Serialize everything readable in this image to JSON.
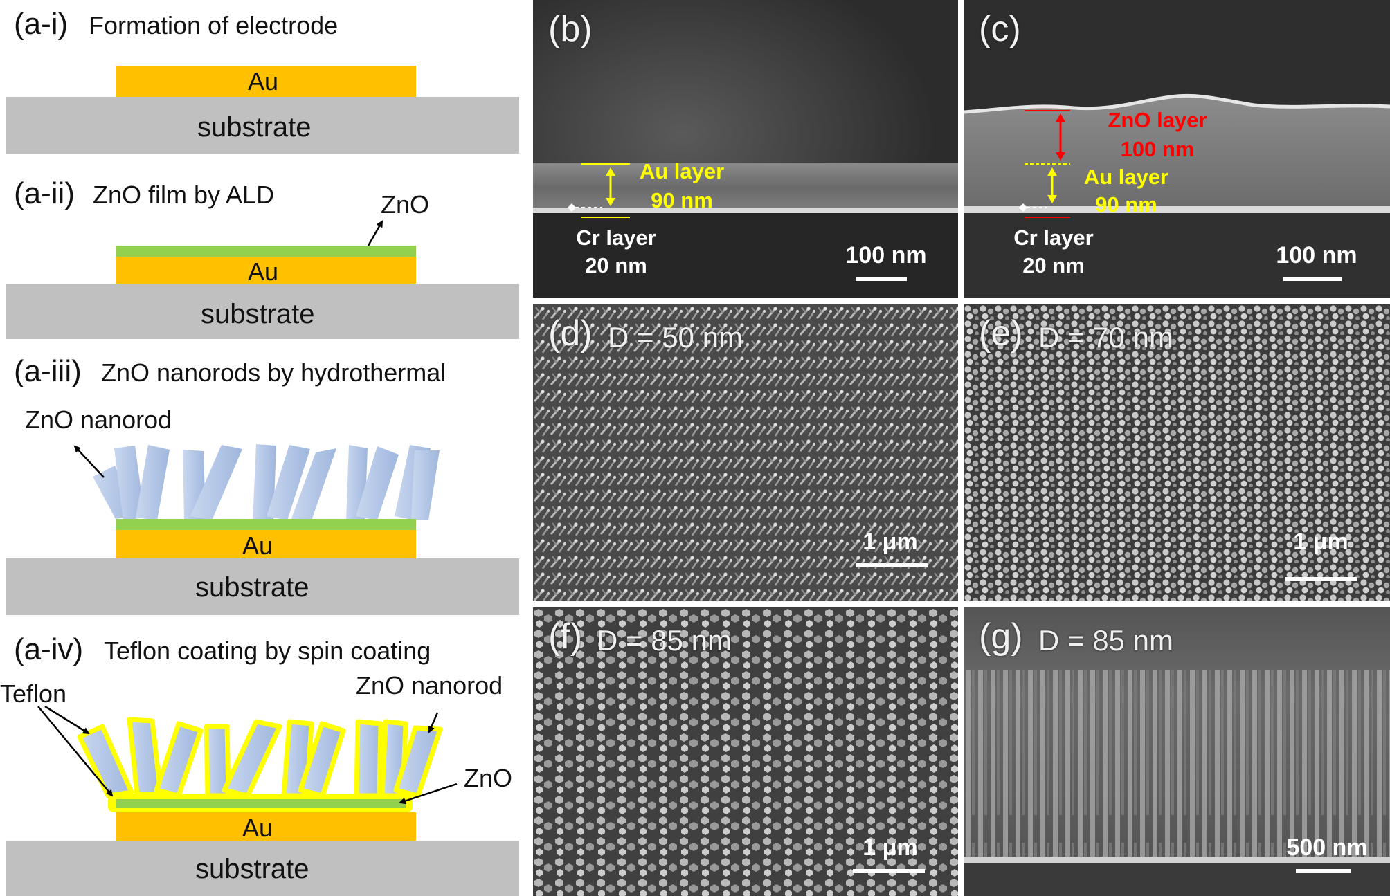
{
  "left_panels": {
    "a1": {
      "label": "(a-i)",
      "title": "Formation of electrode",
      "au": "Au",
      "substrate": "substrate"
    },
    "a2": {
      "label": "(a-ii)",
      "title": "ZnO film by ALD",
      "zno": "ZnO",
      "au": "Au",
      "substrate": "substrate"
    },
    "a3": {
      "label": "(a-iii)",
      "title": "ZnO nanorods by hydrothermal",
      "nanorod": "ZnO nanorod",
      "au": "Au",
      "substrate": "substrate"
    },
    "a4": {
      "label": "(a-iv)",
      "title": "Teflon coating by spin coating",
      "teflon": "Teflon",
      "nanorod": "ZnO nanorod",
      "zno": "ZnO",
      "au": "Au",
      "substrate": "substrate"
    }
  },
  "sem": {
    "b": {
      "label": "(b)",
      "au_layer": "Au layer",
      "au_thick": "90 nm",
      "cr_layer": "Cr layer",
      "cr_thick": "20 nm",
      "scale": "100 nm"
    },
    "c": {
      "label": "(c)",
      "zno_layer": "ZnO layer",
      "zno_thick": "100 nm",
      "au_layer": "Au layer",
      "au_thick": "90 nm",
      "cr_layer": "Cr layer",
      "cr_thick": "20 nm",
      "scale": "100 nm"
    },
    "d": {
      "label": "(d)",
      "diameter": "D = 50 nm",
      "scale": "1 μm"
    },
    "e": {
      "label": "(e)",
      "diameter": "D = 70 nm",
      "scale": "1 μm"
    },
    "f": {
      "label": "(f)",
      "diameter": "D = 85 nm",
      "scale": "1 μm"
    },
    "g": {
      "label": "(g)",
      "diameter": "D = 85 nm",
      "scale": "500 nm"
    }
  },
  "colors": {
    "au": "#ffc000",
    "substrate": "#c0c0c0",
    "zno_film": "#92d050",
    "nanorod": "#b4c7e7",
    "teflon": "#ffff00",
    "annotation_yellow": "#ffff00",
    "annotation_red": "#ff0000"
  }
}
